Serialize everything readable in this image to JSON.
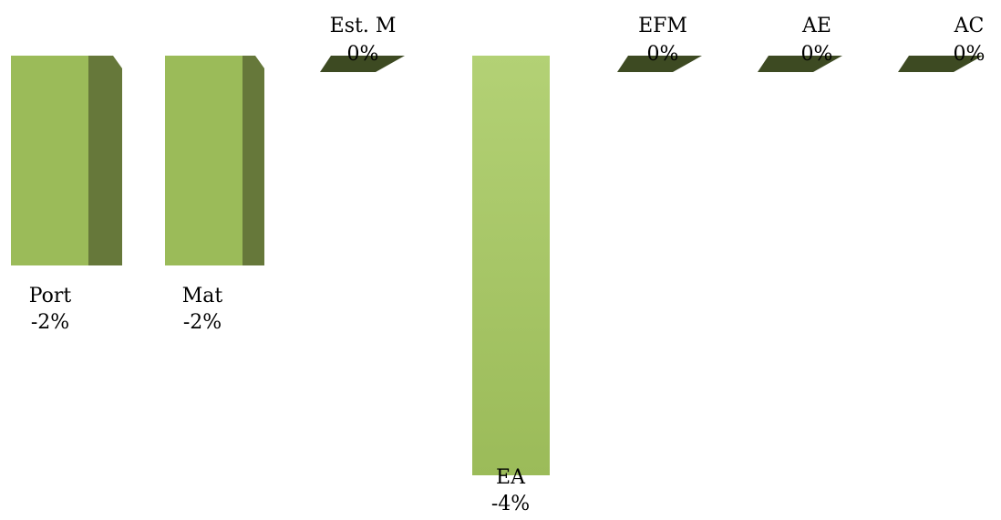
{
  "chart_data": {
    "type": "bar",
    "categories": [
      "Port",
      "Mat",
      "Est. M",
      "EA",
      "EFM",
      "AE",
      "AC"
    ],
    "values": [
      -2,
      -2,
      0,
      -4,
      0,
      0,
      0
    ],
    "value_labels": [
      "-2%",
      "-2%",
      "0%",
      "-4%",
      "0%",
      "0%",
      "0%"
    ],
    "ylim": [
      -4,
      0
    ],
    "grid": false,
    "legend": "none",
    "colors": {
      "front": "#9bbb59",
      "front_light": "#b3d175",
      "side": "#66783a",
      "top": "#3d4a22"
    }
  }
}
